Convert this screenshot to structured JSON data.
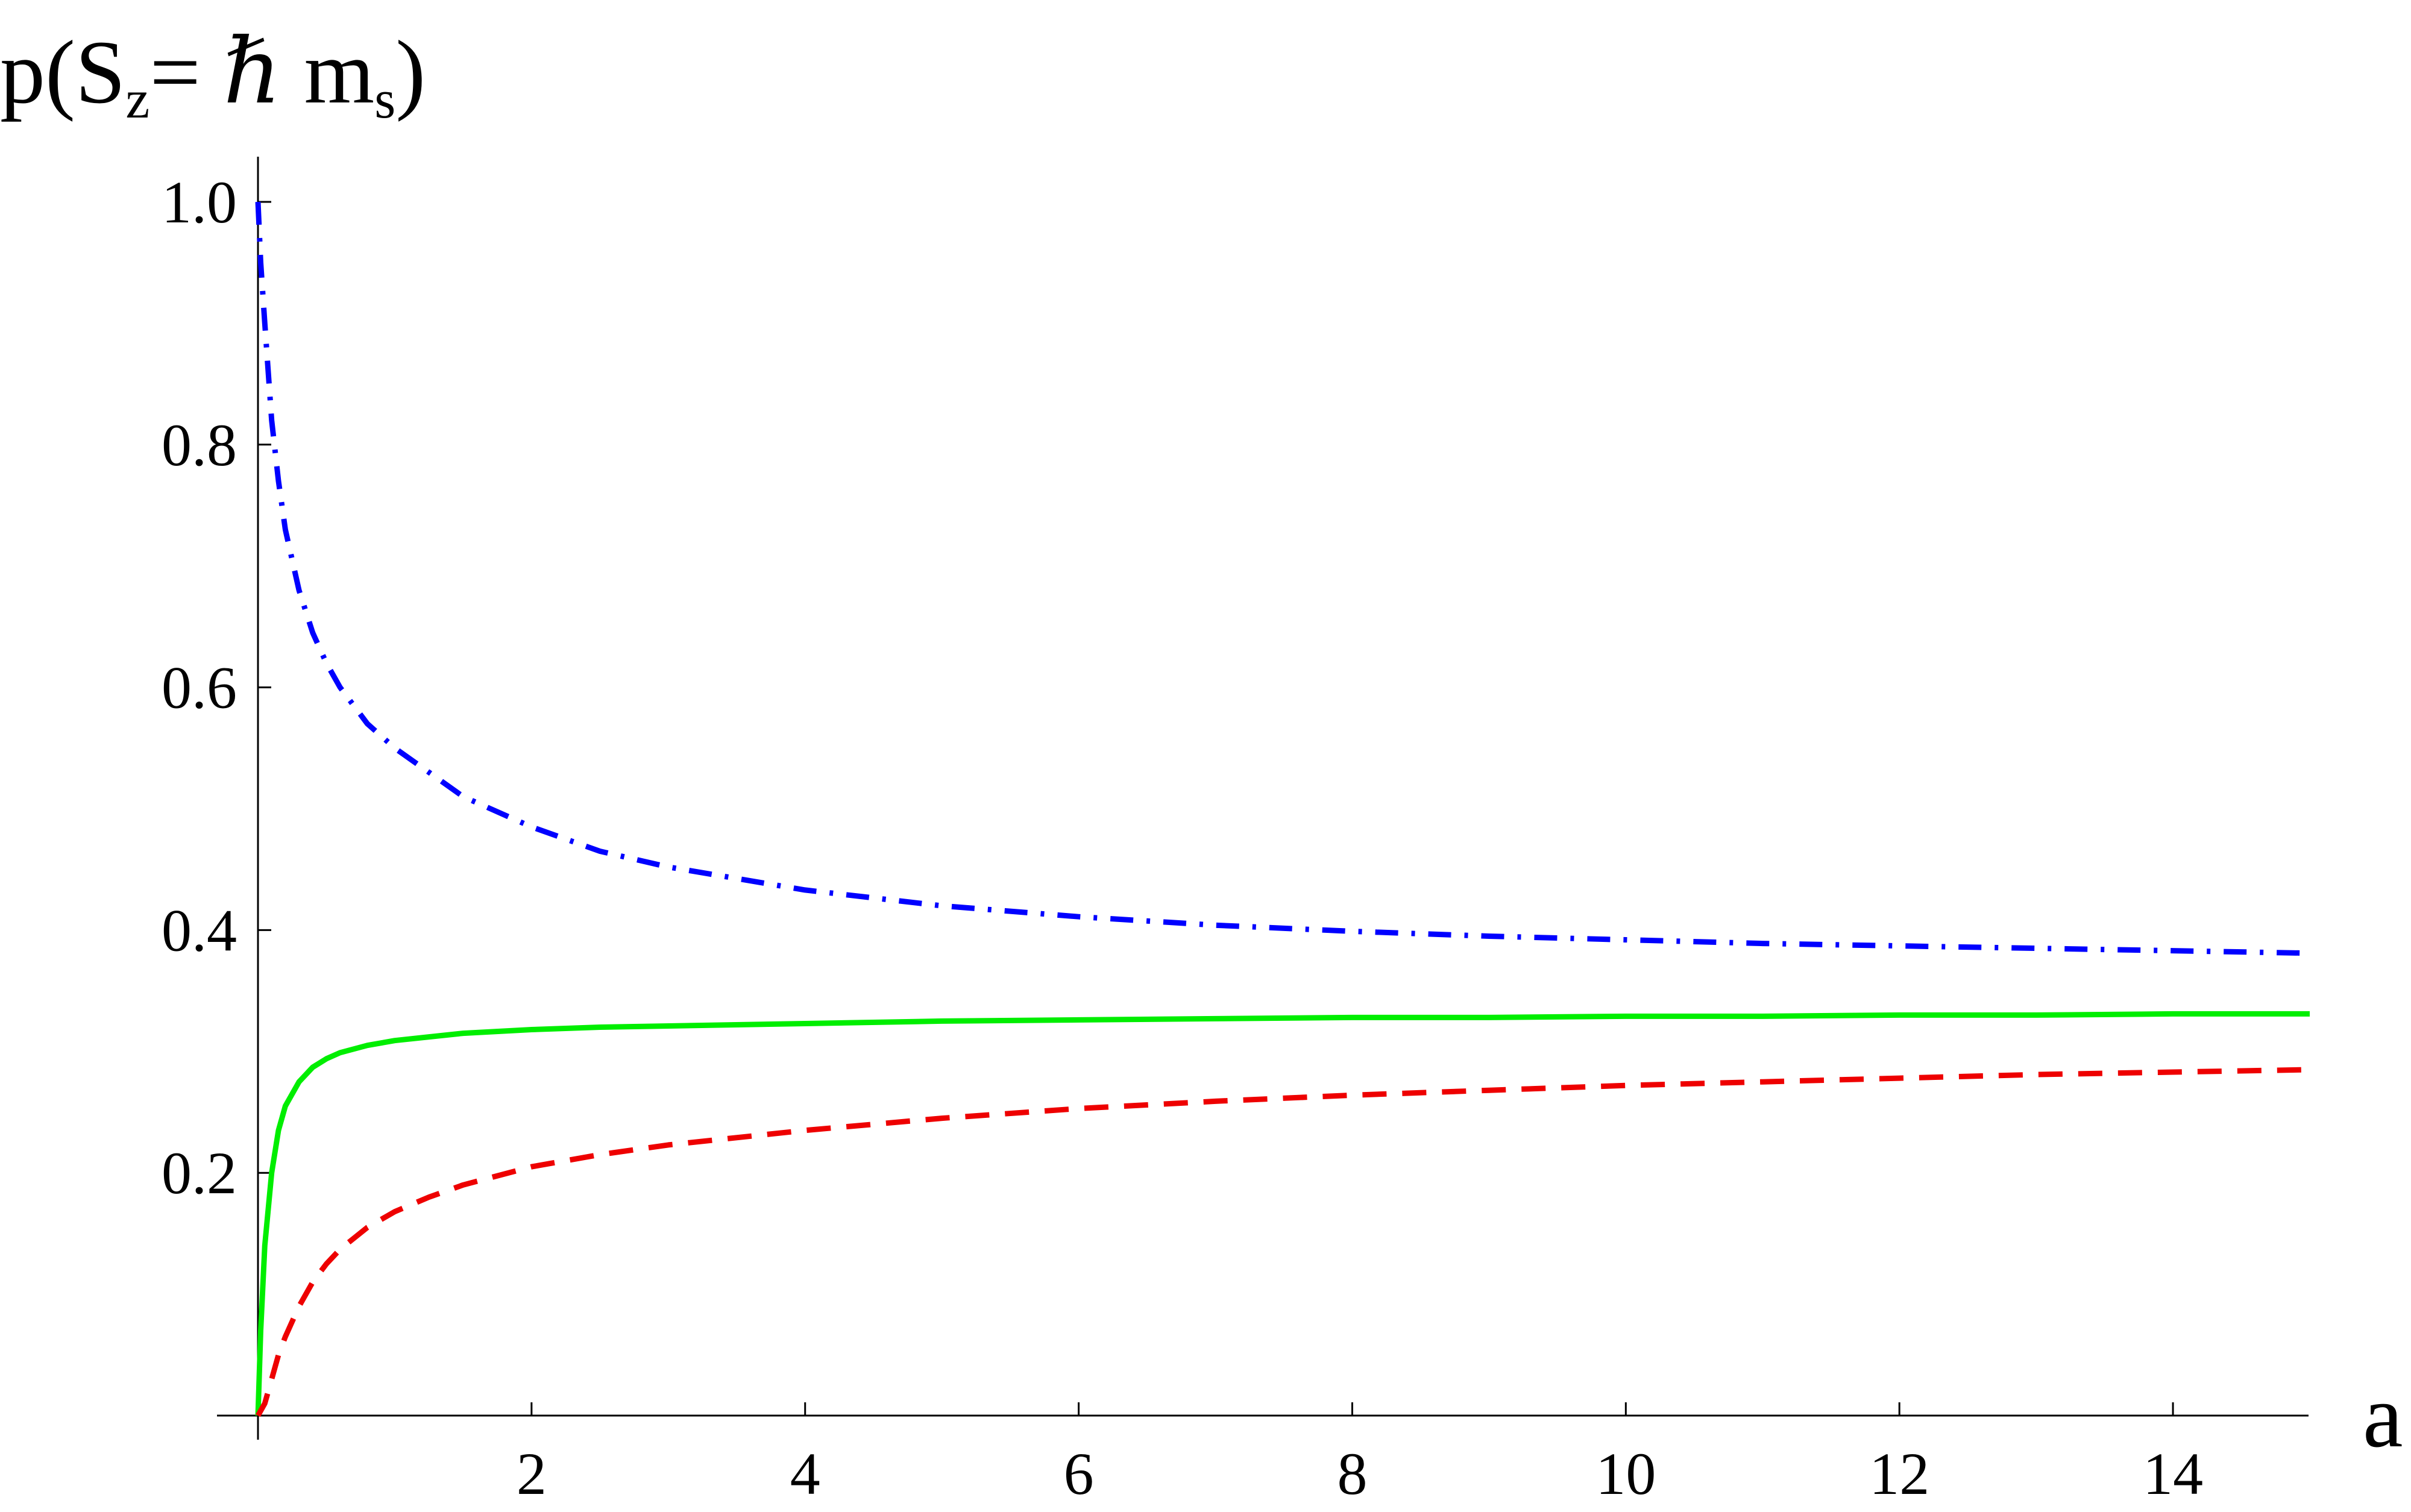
{
  "chart_data": {
    "type": "line",
    "title": "",
    "xlabel": "a",
    "ylabel": {
      "prefix": "p(S",
      "sub1": "z",
      "middle": "= ",
      "hbar": "ℏ",
      "space": " m",
      "sub2": "s",
      "suffix": ")"
    },
    "xlim": [
      0,
      15
    ],
    "ylim": [
      0,
      1.0
    ],
    "x_ticks": [
      2,
      4,
      6,
      8,
      10,
      12,
      14
    ],
    "x_tick_labels": [
      "2",
      "4",
      "6",
      "8",
      "10",
      "12",
      "14"
    ],
    "y_ticks": [
      0.2,
      0.4,
      0.6,
      0.8,
      1.0
    ],
    "y_tick_labels": [
      "0.2",
      "0.4",
      "0.6",
      "0.8",
      "1.0"
    ],
    "grid": false,
    "legend": "none",
    "series": [
      {
        "color": "#0000ff",
        "style": "dash-dot",
        "x": [
          0,
          0.02,
          0.05,
          0.1,
          0.15,
          0.2,
          0.3,
          0.4,
          0.5,
          0.6,
          0.8,
          1.0,
          1.25,
          1.5,
          2,
          2.5,
          3,
          4,
          5,
          6,
          7,
          8,
          9,
          10,
          11,
          12,
          13,
          14,
          15
        ],
        "values": [
          1.0,
          0.95,
          0.9,
          0.82,
          0.77,
          0.73,
          0.68,
          0.645,
          0.62,
          0.6,
          0.57,
          0.55,
          0.53,
          0.51,
          0.485,
          0.465,
          0.452,
          0.433,
          0.42,
          0.411,
          0.404,
          0.399,
          0.395,
          0.392,
          0.389,
          0.387,
          0.385,
          0.383,
          0.381
        ]
      },
      {
        "color": "#00ee00",
        "style": "solid",
        "x": [
          0,
          0.02,
          0.05,
          0.1,
          0.15,
          0.2,
          0.3,
          0.4,
          0.5,
          0.6,
          0.8,
          1.0,
          1.25,
          1.5,
          2,
          2.5,
          3,
          4,
          5,
          6,
          7,
          8,
          9,
          10,
          11,
          12,
          13,
          14,
          15
        ],
        "values": [
          0.0,
          0.07,
          0.14,
          0.2,
          0.235,
          0.255,
          0.275,
          0.287,
          0.294,
          0.299,
          0.305,
          0.309,
          0.312,
          0.315,
          0.318,
          0.32,
          0.321,
          0.323,
          0.325,
          0.326,
          0.327,
          0.328,
          0.328,
          0.329,
          0.329,
          0.33,
          0.33,
          0.331,
          0.331
        ]
      },
      {
        "color": "#ee0000",
        "style": "dashed",
        "x": [
          0,
          0.05,
          0.1,
          0.15,
          0.2,
          0.3,
          0.4,
          0.5,
          0.6,
          0.8,
          1.0,
          1.25,
          1.5,
          2,
          2.5,
          3,
          4,
          5,
          6,
          7,
          8,
          9,
          10,
          11,
          12,
          13,
          14,
          15
        ],
        "values": [
          0.0,
          0.01,
          0.03,
          0.05,
          0.065,
          0.09,
          0.11,
          0.125,
          0.137,
          0.155,
          0.168,
          0.18,
          0.19,
          0.205,
          0.215,
          0.223,
          0.235,
          0.245,
          0.253,
          0.259,
          0.264,
          0.268,
          0.272,
          0.275,
          0.278,
          0.281,
          0.283,
          0.285
        ]
      }
    ]
  }
}
